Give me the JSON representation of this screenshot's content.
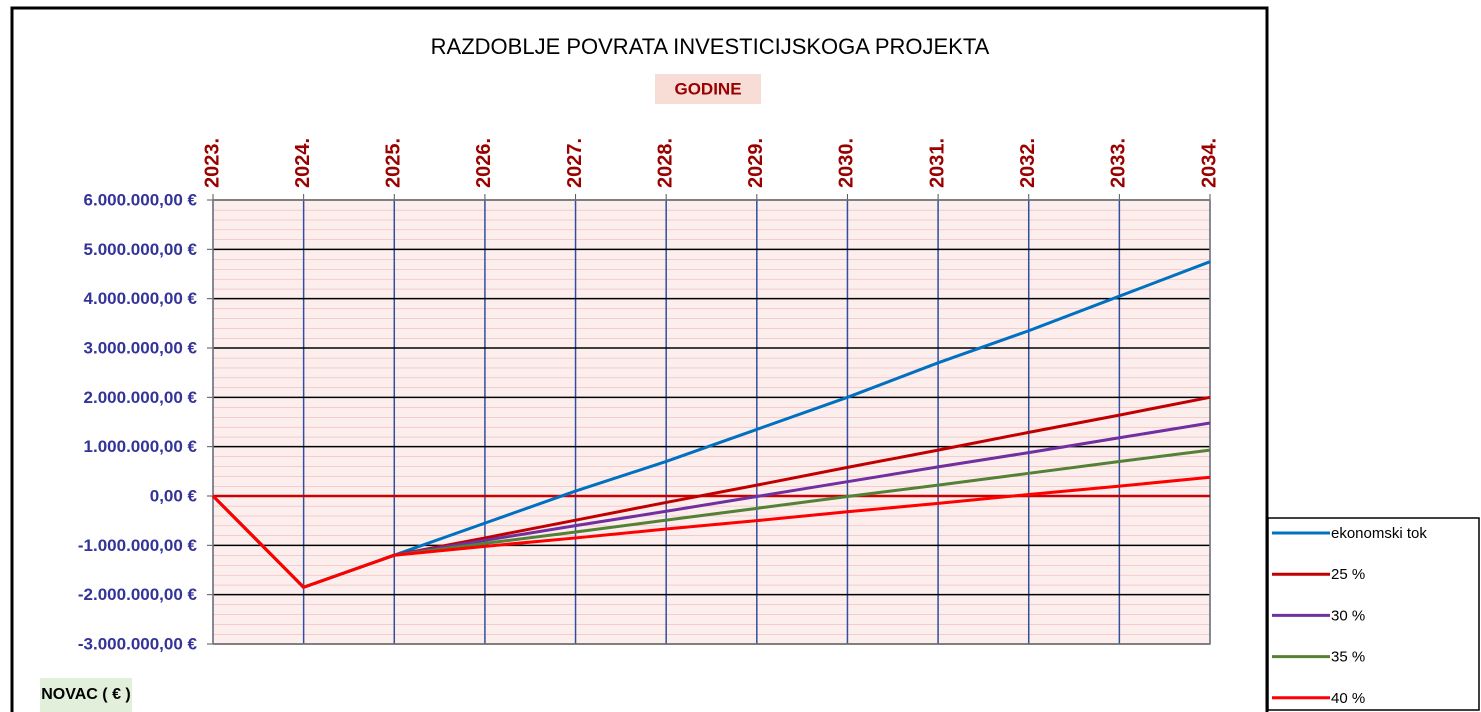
{
  "chart_data": {
    "type": "line",
    "title": "RAZDOBLJE POVRATA INVESTICIJSKOGA PROJEKTA",
    "x_label": "GODINE",
    "y_label": "NOVAC ( € )",
    "categories": [
      "2023.",
      "2024.",
      "2025.",
      "2026.",
      "2027.",
      "2028.",
      "2029.",
      "2030.",
      "2031.",
      "2032.",
      "2033.",
      "2034."
    ],
    "series": [
      {
        "name": "ekonomski tok",
        "color": "#0070c0",
        "values": [
          0,
          -1850000,
          -1200000,
          -550000,
          100000,
          700000,
          1350000,
          2000000,
          2700000,
          3350000,
          4050000,
          4750000
        ]
      },
      {
        "name": "25 %",
        "color": "#c00000",
        "values": [
          0,
          -1850000,
          -1200000,
          -850000,
          -490000,
          -130000,
          220000,
          580000,
          930000,
          1290000,
          1640000,
          2000000
        ]
      },
      {
        "name": "30 %",
        "color": "#7030a0",
        "values": [
          0,
          -1850000,
          -1200000,
          -900000,
          -600000,
          -310000,
          -10000,
          290000,
          590000,
          880000,
          1180000,
          1480000
        ]
      },
      {
        "name": "35 %",
        "color": "#538135",
        "values": [
          0,
          -1850000,
          -1200000,
          -960000,
          -730000,
          -490000,
          -250000,
          -10000,
          220000,
          460000,
          700000,
          930000
        ]
      },
      {
        "name": "40 %",
        "color": "#ff0000",
        "values": [
          0,
          -1850000,
          -1200000,
          -1020000,
          -850000,
          -670000,
          -500000,
          -320000,
          -150000,
          30000,
          200000,
          380000
        ]
      }
    ],
    "ylim": [
      -3000000,
      6000000
    ],
    "yticks": [
      {
        "value": -3000000,
        "label": "-3.000.000,00 €"
      },
      {
        "value": -2000000,
        "label": "-2.000.000,00 €"
      },
      {
        "value": -1000000,
        "label": "-1.000.000,00 €"
      },
      {
        "value": 0,
        "label": "0,00 €"
      },
      {
        "value": 1000000,
        "label": "1.000.000,00 €"
      },
      {
        "value": 2000000,
        "label": "2.000.000,00 €"
      },
      {
        "value": 3000000,
        "label": "3.000.000,00 €"
      },
      {
        "value": 4000000,
        "label": "4.000.000,00 €"
      },
      {
        "value": 5000000,
        "label": "5.000.000,00 €"
      },
      {
        "value": 6000000,
        "label": "6.000.000,00 €"
      }
    ],
    "grid": true,
    "legend_position": "lower right"
  }
}
